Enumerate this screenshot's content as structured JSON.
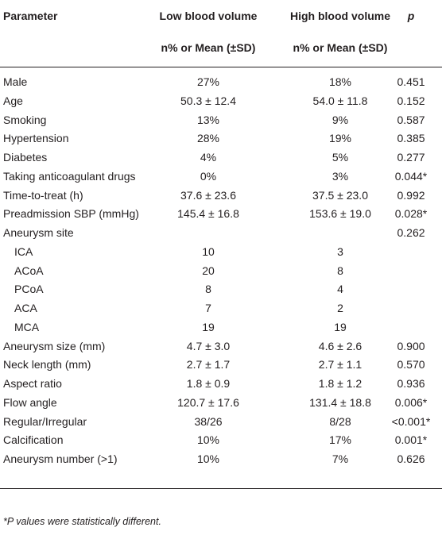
{
  "table": {
    "header": {
      "parameter": "Parameter",
      "low": "Low blood volume",
      "high": "High blood volume",
      "p": "p"
    },
    "subheader": {
      "low": "n% or Mean (±SD)",
      "high": "n% or Mean (±SD)"
    },
    "rows": [
      {
        "parameter": "Male",
        "low": "27%",
        "high": "18%",
        "p": "0.451"
      },
      {
        "parameter": "Age",
        "low": "50.3 ± 12.4",
        "high": "54.0 ± 11.8",
        "p": "0.152"
      },
      {
        "parameter": "Smoking",
        "low": "13%",
        "high": "9%",
        "p": "0.587"
      },
      {
        "parameter": "Hypertension",
        "low": "28%",
        "high": "19%",
        "p": "0.385"
      },
      {
        "parameter": "Diabetes",
        "low": "4%",
        "high": "5%",
        "p": "0.277"
      },
      {
        "parameter": "Taking anticoagulant drugs",
        "low": "0%",
        "high": "3%",
        "p": "0.044*"
      },
      {
        "parameter": "Time-to-treat (h)",
        "low": "37.6 ± 23.6",
        "high": "37.5 ± 23.0",
        "p": "0.992"
      },
      {
        "parameter": "Preadmission SBP (mmHg)",
        "low": "145.4 ± 16.8",
        "high": "153.6 ± 19.0",
        "p": "0.028*"
      },
      {
        "parameter": "Aneurysm site",
        "p": "0.262",
        "subrows": [
          {
            "parameter": "ICA",
            "low": "10",
            "high": "3"
          },
          {
            "parameter": "ACoA",
            "low": "20",
            "high": "8"
          },
          {
            "parameter": "PCoA",
            "low": "8",
            "high": "4"
          },
          {
            "parameter": "ACA",
            "low": "7",
            "high": "2"
          },
          {
            "parameter": "MCA",
            "low": "19",
            "high": "19"
          }
        ]
      },
      {
        "parameter": "Aneurysm size (mm)",
        "low": "4.7 ± 3.0",
        "high": "4.6 ± 2.6",
        "p": "0.900"
      },
      {
        "parameter": "Neck length (mm)",
        "low": "2.7 ± 1.7",
        "high": "2.7 ± 1.1",
        "p": "0.570"
      },
      {
        "parameter": "Aspect ratio",
        "low": "1.8 ± 0.9",
        "high": "1.8 ± 1.2",
        "p": "0.936"
      },
      {
        "parameter": "Flow angle",
        "low": "120.7 ± 17.6",
        "high": "131.4 ± 18.8",
        "p": "0.006*"
      },
      {
        "parameter": "Regular/Irregular",
        "low": "38/26",
        "high": "8/28",
        "p": "<0.001*"
      },
      {
        "parameter": "Calcification",
        "low": "10%",
        "high": "17%",
        "p": "0.001*"
      },
      {
        "parameter": "Aneurysm number (>1)",
        "low": "10%",
        "high": "7%",
        "p": "0.626"
      }
    ]
  },
  "footnote": "*P values were statistically different."
}
